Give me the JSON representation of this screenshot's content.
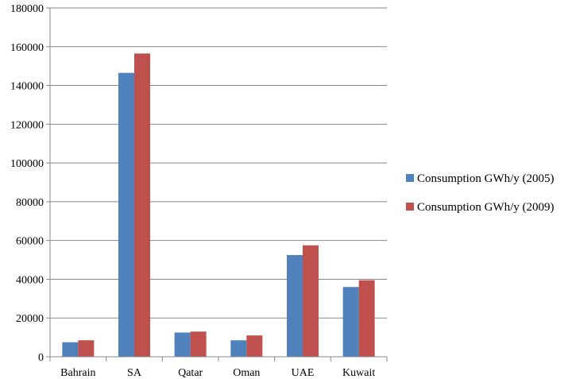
{
  "chart_data": {
    "type": "bar",
    "categories": [
      "Bahrain",
      "SA",
      "Qatar",
      "Oman",
      "UAE",
      "Kuwait"
    ],
    "series": [
      {
        "name": "Consumption GWh/y (2005)",
        "color": "#4f81bd",
        "values": [
          7500,
          146500,
          12500,
          8500,
          52500,
          36000
        ]
      },
      {
        "name": "Consumption GWh/y (2009)",
        "color": "#c0504d",
        "values": [
          8500,
          156500,
          13000,
          11000,
          57500,
          39500
        ]
      }
    ],
    "title": "",
    "xlabel": "",
    "ylabel": "",
    "ylim": [
      0,
      180000
    ],
    "yticks": [
      0,
      20000,
      40000,
      60000,
      80000,
      100000,
      120000,
      140000,
      160000,
      180000
    ],
    "ytick_labels": [
      "0",
      "20000",
      "40000",
      "60000",
      "80000",
      "100000",
      "120000",
      "140000",
      "160000",
      "180000"
    ],
    "grid": true,
    "legend_position": "right"
  }
}
